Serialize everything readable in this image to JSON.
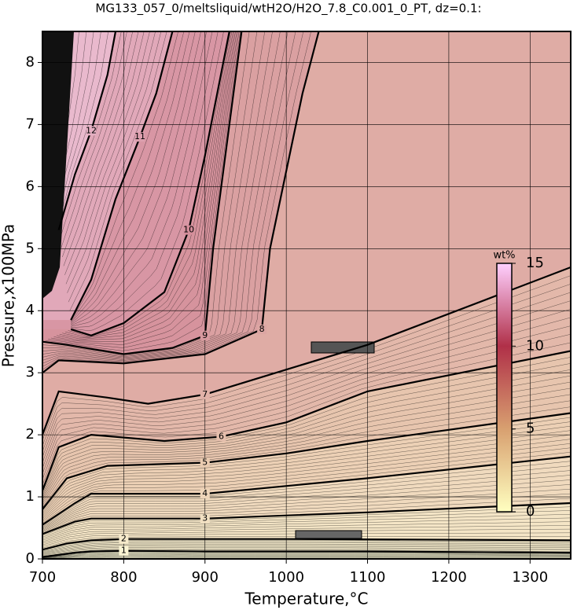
{
  "chart_data": {
    "type": "contour",
    "title": "MG133_057_0/meltsliquid/wtH2O/H2O_7.8_C0.001_0_PT, dz=0.1:",
    "x_label": "Temperature,°C",
    "y_label": "Pressure,x100MPa",
    "xlim": [
      700,
      1350
    ],
    "ylim": [
      0,
      8.5
    ],
    "xticks": [
      700,
      800,
      900,
      1000,
      1100,
      1200,
      1300
    ],
    "yticks": [
      0,
      1,
      2,
      3,
      4,
      5,
      6,
      7,
      8
    ],
    "grid": true,
    "contours": [
      {
        "level": 1,
        "x": [
          700,
          740,
          760,
          800,
          900,
          1100,
          1350
        ],
        "y": [
          0.03,
          0.1,
          0.12,
          0.13,
          0.12,
          0.12,
          0.1
        ]
      },
      {
        "level": 2,
        "x": [
          700,
          730,
          760,
          800,
          1000,
          1350
        ],
        "y": [
          0.15,
          0.25,
          0.3,
          0.32,
          0.32,
          0.3
        ]
      },
      {
        "level": 3,
        "x": [
          700,
          740,
          760,
          900,
          1100,
          1350
        ],
        "y": [
          0.4,
          0.6,
          0.65,
          0.65,
          0.75,
          0.9
        ]
      },
      {
        "level": 4,
        "x": [
          700,
          740,
          760,
          900,
          1100,
          1350
        ],
        "y": [
          0.55,
          0.9,
          1.05,
          1.05,
          1.3,
          1.65
        ]
      },
      {
        "level": 5,
        "x": [
          700,
          730,
          780,
          900,
          1000,
          1100,
          1350
        ],
        "y": [
          0.8,
          1.3,
          1.5,
          1.55,
          1.7,
          1.9,
          2.35
        ]
      },
      {
        "level": 6,
        "x": [
          700,
          720,
          760,
          850,
          920,
          1000,
          1100,
          1350
        ],
        "y": [
          1.1,
          1.8,
          2.0,
          1.9,
          1.97,
          2.2,
          2.7,
          3.35
        ]
      },
      {
        "level": 7,
        "x": [
          700,
          720,
          780,
          830,
          900,
          1000,
          1100,
          1350
        ],
        "y": [
          2.0,
          2.7,
          2.6,
          2.5,
          2.65,
          3.05,
          3.45,
          4.7
        ]
      },
      {
        "level": 8,
        "x": [
          700,
          720,
          800,
          900,
          970,
          980,
          1020,
          1040
        ],
        "y": [
          3.0,
          3.2,
          3.15,
          3.3,
          3.7,
          5.0,
          7.5,
          8.5
        ]
      },
      {
        "level": 9,
        "x": [
          700,
          730,
          800,
          860,
          900,
          910,
          930,
          945
        ],
        "y": [
          3.5,
          3.45,
          3.3,
          3.4,
          3.6,
          5,
          7,
          8.5
        ]
      },
      {
        "level": 10,
        "x": [
          735,
          760,
          800,
          850,
          880,
          900,
          915,
          930
        ],
        "y": [
          3.7,
          3.6,
          3.8,
          4.3,
          5.3,
          6.5,
          7.5,
          8.5
        ]
      },
      {
        "level": 11,
        "x": [
          735,
          760,
          790,
          820,
          840,
          860
        ],
        "y": [
          3.85,
          4.5,
          5.8,
          6.8,
          7.5,
          8.5
        ]
      },
      {
        "level": 12,
        "x": [
          720,
          740,
          760,
          780,
          790
        ],
        "y": [
          5.3,
          6.2,
          6.9,
          7.8,
          8.5
        ]
      }
    ],
    "colorbar": {
      "label": "wt%",
      "lim": [
        0,
        15
      ],
      "ticks": [
        0,
        5,
        10,
        15
      ],
      "colors": [
        "#ffffc0",
        "#d8a070",
        "#b03048",
        "#ffd0ff"
      ]
    }
  }
}
